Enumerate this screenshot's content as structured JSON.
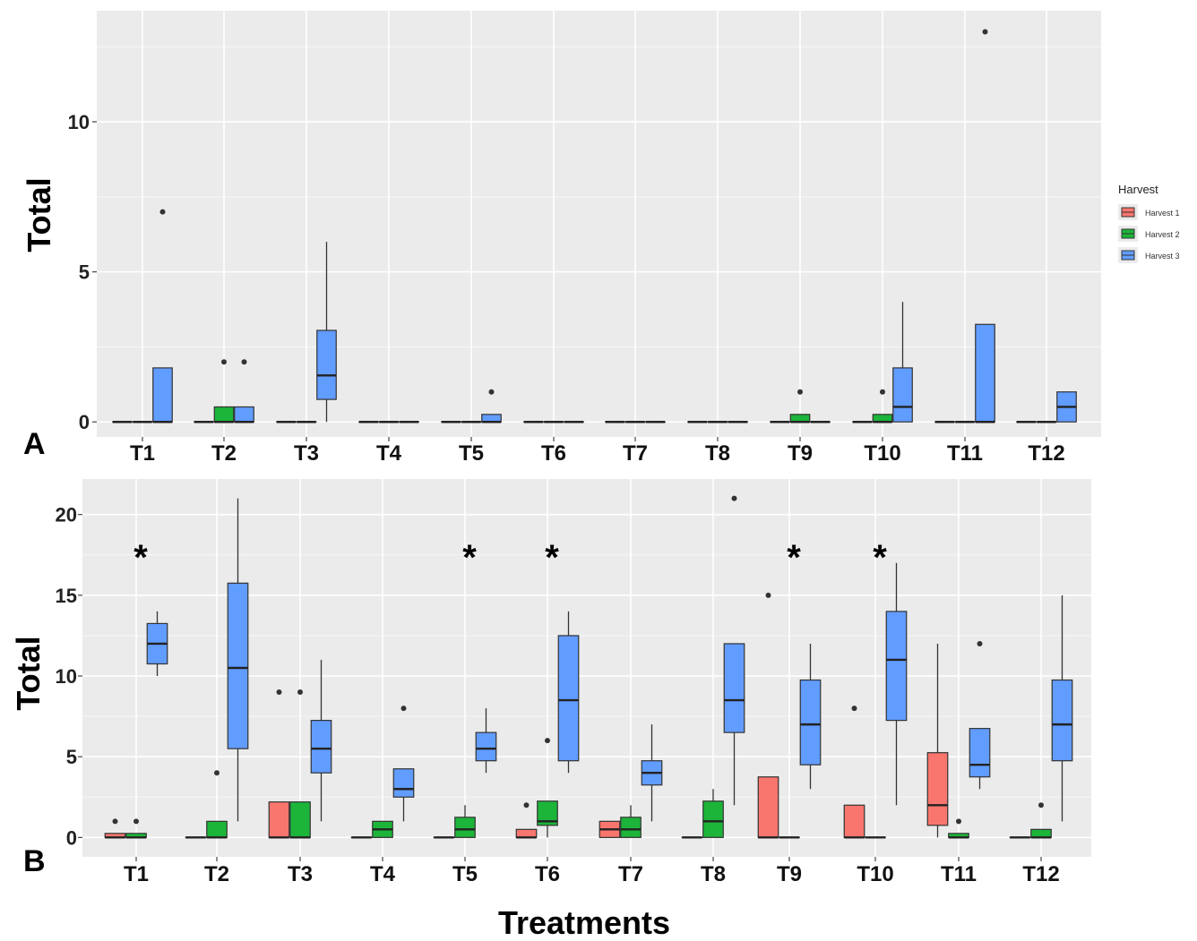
{
  "figure": {
    "x_title": "Treatments",
    "legend_title": "Harvest",
    "legend_entries": [
      {
        "name": "Harvest 1",
        "color": "#F8766D"
      },
      {
        "name": "Harvest 2",
        "color": "#1DB43A"
      },
      {
        "name": "Harvest 3",
        "color": "#619CFF"
      }
    ]
  },
  "chart_data": [
    {
      "type": "box",
      "panel": "A",
      "ylabel": "Total",
      "ylim": [
        -0.5,
        13.7
      ],
      "y_ticks": [
        0,
        5,
        10
      ],
      "grid": true,
      "legend": "right",
      "categories": [
        "T1",
        "T2",
        "T3",
        "T4",
        "T5",
        "T6",
        "T7",
        "T8",
        "T9",
        "T10",
        "T11",
        "T12"
      ],
      "annotations": [],
      "series": [
        {
          "name": "Harvest 1",
          "color": "#F8766D",
          "boxes": [
            {
              "q1": 0,
              "median": 0,
              "q3": 0,
              "lo": 0,
              "hi": 0,
              "outliers": []
            },
            {
              "q1": 0,
              "median": 0,
              "q3": 0,
              "lo": 0,
              "hi": 0,
              "outliers": []
            },
            {
              "q1": 0,
              "median": 0,
              "q3": 0,
              "lo": 0,
              "hi": 0,
              "outliers": []
            },
            {
              "q1": 0,
              "median": 0,
              "q3": 0,
              "lo": 0,
              "hi": 0,
              "outliers": []
            },
            {
              "q1": 0,
              "median": 0,
              "q3": 0,
              "lo": 0,
              "hi": 0,
              "outliers": []
            },
            {
              "q1": 0,
              "median": 0,
              "q3": 0,
              "lo": 0,
              "hi": 0,
              "outliers": []
            },
            {
              "q1": 0,
              "median": 0,
              "q3": 0,
              "lo": 0,
              "hi": 0,
              "outliers": []
            },
            {
              "q1": 0,
              "median": 0,
              "q3": 0,
              "lo": 0,
              "hi": 0,
              "outliers": []
            },
            {
              "q1": 0,
              "median": 0,
              "q3": 0,
              "lo": 0,
              "hi": 0,
              "outliers": []
            },
            {
              "q1": 0,
              "median": 0,
              "q3": 0,
              "lo": 0,
              "hi": 0,
              "outliers": []
            },
            {
              "q1": 0,
              "median": 0,
              "q3": 0,
              "lo": 0,
              "hi": 0,
              "outliers": []
            },
            {
              "q1": 0,
              "median": 0,
              "q3": 0,
              "lo": 0,
              "hi": 0,
              "outliers": []
            }
          ]
        },
        {
          "name": "Harvest 2",
          "color": "#1DB43A",
          "boxes": [
            {
              "q1": 0,
              "median": 0,
              "q3": 0,
              "lo": 0,
              "hi": 0,
              "outliers": []
            },
            {
              "q1": 0,
              "median": 0,
              "q3": 0.5,
              "lo": 0,
              "hi": 0.5,
              "outliers": [
                2
              ]
            },
            {
              "q1": 0,
              "median": 0,
              "q3": 0,
              "lo": 0,
              "hi": 0,
              "outliers": []
            },
            {
              "q1": 0,
              "median": 0,
              "q3": 0,
              "lo": 0,
              "hi": 0,
              "outliers": []
            },
            {
              "q1": 0,
              "median": 0,
              "q3": 0,
              "lo": 0,
              "hi": 0,
              "outliers": []
            },
            {
              "q1": 0,
              "median": 0,
              "q3": 0,
              "lo": 0,
              "hi": 0,
              "outliers": []
            },
            {
              "q1": 0,
              "median": 0,
              "q3": 0,
              "lo": 0,
              "hi": 0,
              "outliers": []
            },
            {
              "q1": 0,
              "median": 0,
              "q3": 0,
              "lo": 0,
              "hi": 0,
              "outliers": []
            },
            {
              "q1": 0,
              "median": 0,
              "q3": 0.25,
              "lo": 0,
              "hi": 0.25,
              "outliers": [
                1
              ]
            },
            {
              "q1": 0,
              "median": 0,
              "q3": 0.25,
              "lo": 0,
              "hi": 0.25,
              "outliers": [
                1
              ]
            },
            {
              "q1": 0,
              "median": 0,
              "q3": 0,
              "lo": 0,
              "hi": 0,
              "outliers": []
            },
            {
              "q1": 0,
              "median": 0,
              "q3": 0,
              "lo": 0,
              "hi": 0,
              "outliers": []
            }
          ]
        },
        {
          "name": "Harvest 3",
          "color": "#619CFF",
          "boxes": [
            {
              "q1": 0,
              "median": 0,
              "q3": 1.8,
              "lo": 0,
              "hi": 1.8,
              "outliers": [
                7
              ]
            },
            {
              "q1": 0,
              "median": 0,
              "q3": 0.5,
              "lo": 0,
              "hi": 0.5,
              "outliers": [
                2
              ]
            },
            {
              "q1": 0.75,
              "median": 1.55,
              "q3": 3.05,
              "lo": 0,
              "hi": 6,
              "outliers": []
            },
            {
              "q1": 0,
              "median": 0,
              "q3": 0,
              "lo": 0,
              "hi": 0,
              "outliers": []
            },
            {
              "q1": 0,
              "median": 0,
              "q3": 0.25,
              "lo": 0,
              "hi": 0.25,
              "outliers": [
                1
              ]
            },
            {
              "q1": 0,
              "median": 0,
              "q3": 0,
              "lo": 0,
              "hi": 0,
              "outliers": []
            },
            {
              "q1": 0,
              "median": 0,
              "q3": 0,
              "lo": 0,
              "hi": 0,
              "outliers": []
            },
            {
              "q1": 0,
              "median": 0,
              "q3": 0,
              "lo": 0,
              "hi": 0,
              "outliers": []
            },
            {
              "q1": 0,
              "median": 0,
              "q3": 0,
              "lo": 0,
              "hi": 0,
              "outliers": []
            },
            {
              "q1": 0,
              "median": 0.5,
              "q3": 1.8,
              "lo": 0,
              "hi": 4,
              "outliers": []
            },
            {
              "q1": 0,
              "median": 0,
              "q3": 3.25,
              "lo": 0,
              "hi": 3.25,
              "outliers": [
                13
              ]
            },
            {
              "q1": 0,
              "median": 0.5,
              "q3": 1.0,
              "lo": 0,
              "hi": 1.0,
              "outliers": []
            }
          ]
        }
      ]
    },
    {
      "type": "box",
      "panel": "B",
      "ylabel": "Total",
      "ylim": [
        -1.2,
        22.2
      ],
      "y_ticks": [
        0,
        5,
        10,
        15,
        20
      ],
      "grid": true,
      "categories": [
        "T1",
        "T2",
        "T3",
        "T4",
        "T5",
        "T6",
        "T7",
        "T8",
        "T9",
        "T10",
        "T11",
        "T12"
      ],
      "annotations": [
        {
          "category": "T1",
          "text": "*",
          "y": 17.5
        },
        {
          "category": "T5",
          "text": "*",
          "y": 17.5
        },
        {
          "category": "T6",
          "text": "*",
          "y": 17.5
        },
        {
          "category": "T9",
          "text": "*",
          "y": 17.5
        },
        {
          "category": "T10",
          "text": "*",
          "y": 17.5
        }
      ],
      "series": [
        {
          "name": "Harvest 1",
          "color": "#F8766D",
          "boxes": [
            {
              "q1": 0,
              "median": 0,
              "q3": 0.25,
              "lo": 0,
              "hi": 0.25,
              "outliers": [
                1
              ]
            },
            {
              "q1": 0,
              "median": 0,
              "q3": 0,
              "lo": 0,
              "hi": 0,
              "outliers": []
            },
            {
              "q1": 0,
              "median": 0,
              "q3": 2.2,
              "lo": 0,
              "hi": 2.2,
              "outliers": [
                9
              ]
            },
            {
              "q1": 0,
              "median": 0,
              "q3": 0,
              "lo": 0,
              "hi": 0,
              "outliers": []
            },
            {
              "q1": 0,
              "median": 0,
              "q3": 0,
              "lo": 0,
              "hi": 0,
              "outliers": []
            },
            {
              "q1": 0,
              "median": 0,
              "q3": 0.5,
              "lo": 0,
              "hi": 0.5,
              "outliers": [
                2
              ]
            },
            {
              "q1": 0,
              "median": 0.5,
              "q3": 1.0,
              "lo": 0,
              "hi": 1.0,
              "outliers": []
            },
            {
              "q1": 0,
              "median": 0,
              "q3": 0,
              "lo": 0,
              "hi": 0,
              "outliers": []
            },
            {
              "q1": 0,
              "median": 0,
              "q3": 3.75,
              "lo": 0,
              "hi": 3.75,
              "outliers": [
                15
              ]
            },
            {
              "q1": 0,
              "median": 0,
              "q3": 2.0,
              "lo": 0,
              "hi": 2.0,
              "outliers": [
                8
              ]
            },
            {
              "q1": 0.75,
              "median": 2.0,
              "q3": 5.25,
              "lo": 0,
              "hi": 12,
              "outliers": []
            },
            {
              "q1": 0,
              "median": 0,
              "q3": 0,
              "lo": 0,
              "hi": 0,
              "outliers": []
            }
          ]
        },
        {
          "name": "Harvest 2",
          "color": "#1DB43A",
          "boxes": [
            {
              "q1": 0,
              "median": 0,
              "q3": 0.25,
              "lo": 0,
              "hi": 0.25,
              "outliers": [
                1
              ]
            },
            {
              "q1": 0,
              "median": 0,
              "q3": 1.0,
              "lo": 0,
              "hi": 1.0,
              "outliers": [
                4
              ]
            },
            {
              "q1": 0,
              "median": 0,
              "q3": 2.2,
              "lo": 0,
              "hi": 2.2,
              "outliers": [
                9
              ]
            },
            {
              "q1": 0,
              "median": 0.5,
              "q3": 1.0,
              "lo": 0,
              "hi": 1.0,
              "outliers": []
            },
            {
              "q1": 0,
              "median": 0.5,
              "q3": 1.25,
              "lo": 0,
              "hi": 2,
              "outliers": []
            },
            {
              "q1": 0.75,
              "median": 1.0,
              "q3": 2.25,
              "lo": 0,
              "hi": 2.25,
              "outliers": [
                6
              ]
            },
            {
              "q1": 0,
              "median": 0.5,
              "q3": 1.25,
              "lo": 0,
              "hi": 2,
              "outliers": []
            },
            {
              "q1": 0,
              "median": 1.0,
              "q3": 2.25,
              "lo": 0,
              "hi": 3,
              "outliers": []
            },
            {
              "q1": 0,
              "median": 0,
              "q3": 0,
              "lo": 0,
              "hi": 0,
              "outliers": []
            },
            {
              "q1": 0,
              "median": 0,
              "q3": 0,
              "lo": 0,
              "hi": 0,
              "outliers": []
            },
            {
              "q1": 0,
              "median": 0,
              "q3": 0.25,
              "lo": 0,
              "hi": 0.25,
              "outliers": [
                1
              ]
            },
            {
              "q1": 0,
              "median": 0,
              "q3": 0.5,
              "lo": 0,
              "hi": 0.5,
              "outliers": [
                2
              ]
            }
          ]
        },
        {
          "name": "Harvest 3",
          "color": "#619CFF",
          "boxes": [
            {
              "q1": 10.75,
              "median": 12,
              "q3": 13.25,
              "lo": 10,
              "hi": 14,
              "outliers": []
            },
            {
              "q1": 5.5,
              "median": 10.5,
              "q3": 15.75,
              "lo": 1,
              "hi": 21,
              "outliers": []
            },
            {
              "q1": 4,
              "median": 5.5,
              "q3": 7.25,
              "lo": 1,
              "hi": 11,
              "outliers": []
            },
            {
              "q1": 2.5,
              "median": 3,
              "q3": 4.25,
              "lo": 1,
              "hi": 4.25,
              "outliers": [
                8
              ]
            },
            {
              "q1": 4.75,
              "median": 5.5,
              "q3": 6.5,
              "lo": 4,
              "hi": 8,
              "outliers": []
            },
            {
              "q1": 4.75,
              "median": 8.5,
              "q3": 12.5,
              "lo": 4,
              "hi": 14,
              "outliers": []
            },
            {
              "q1": 3.25,
              "median": 4,
              "q3": 4.75,
              "lo": 1,
              "hi": 7,
              "outliers": []
            },
            {
              "q1": 6.5,
              "median": 8.5,
              "q3": 12,
              "lo": 2,
              "hi": 12,
              "outliers": [
                21
              ]
            },
            {
              "q1": 4.5,
              "median": 7,
              "q3": 9.75,
              "lo": 3,
              "hi": 12,
              "outliers": []
            },
            {
              "q1": 7.25,
              "median": 11,
              "q3": 14,
              "lo": 2,
              "hi": 17,
              "outliers": []
            },
            {
              "q1": 3.75,
              "median": 4.5,
              "q3": 6.75,
              "lo": 3,
              "hi": 6.75,
              "outliers": [
                12
              ]
            },
            {
              "q1": 4.75,
              "median": 7,
              "q3": 9.75,
              "lo": 1,
              "hi": 15,
              "outliers": []
            }
          ]
        }
      ]
    }
  ]
}
